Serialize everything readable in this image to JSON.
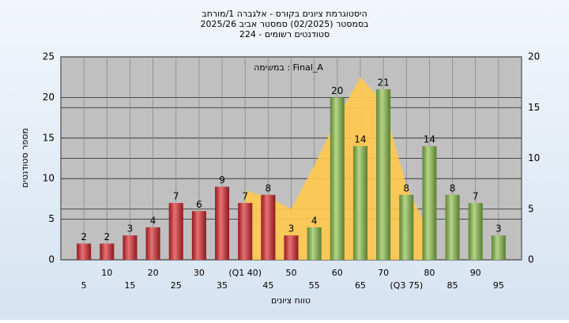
{
  "chart_data": {
    "type": "bar",
    "title": "היסטוגרמת ציונים בקורס - אלגברה 1/מורחב",
    "subtitle": "בסמסטר  (02/2025)  סמסטר אביב 2025/26",
    "subtitle2": "סטודנטים רשומים - 224",
    "annotation": "במשימה : Final_A",
    "y_label": "מספר סטודנטים",
    "x_label": "טווח ציונים",
    "categories": [
      "5",
      "10",
      "15",
      "20",
      "25",
      "30",
      "35",
      "(Q1 40)",
      "45",
      "50",
      "55",
      "60",
      "65",
      "70",
      "(Q3 75)",
      "80",
      "85",
      "90",
      "95"
    ],
    "series": [
      {
        "values": [
          2,
          2,
          3,
          4,
          7,
          6,
          9,
          7,
          8,
          3,
          4,
          20,
          14,
          21,
          8,
          14,
          8,
          7,
          3
        ],
        "colors": [
          "#d9262b",
          "#d9262b",
          "#d9262b",
          "#d9262b",
          "#d9262b",
          "#d9262b",
          "#d9262b",
          "#d9262b",
          "#d9262b",
          "#d9262b",
          "#8cc04a",
          "#8cc04a",
          "#8cc04a",
          "#8cc04a",
          "#8cc04a",
          "#8cc04a",
          "#8cc04a",
          "#8cc04a",
          "#8cc04a"
        ]
      },
      {
        "type": "area",
        "axis": "y2",
        "color": "#ffc94d",
        "values": [
          null,
          null,
          null,
          null,
          null,
          null,
          null,
          6.8,
          6.2,
          5,
          9.3,
          13.9,
          18,
          15.5,
          7.3,
          2.6,
          null,
          null,
          null
        ]
      }
    ],
    "ylim": [
      0,
      25
    ],
    "yticks": [
      0,
      5,
      10,
      15,
      20,
      25
    ],
    "y2lim": [
      0,
      20
    ],
    "y2ticks": [
      0,
      5,
      10,
      15,
      20
    ],
    "grid": true
  }
}
